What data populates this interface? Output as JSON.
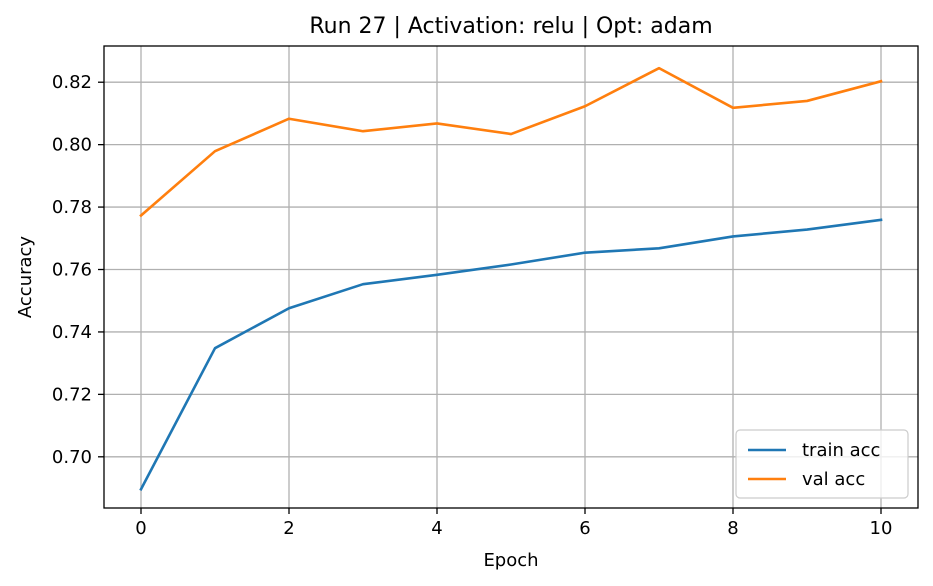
{
  "chart_data": {
    "type": "line",
    "title": "Run 27 | Activation: relu | Opt: adam",
    "xlabel": "Epoch",
    "ylabel": "Accuracy",
    "x": [
      0,
      1,
      2,
      3,
      4,
      5,
      6,
      7,
      8,
      9,
      10
    ],
    "xlim": [
      -0.5,
      10.5
    ],
    "ylim": [
      0.6836,
      0.8316
    ],
    "xticks": [
      0,
      2,
      4,
      6,
      8,
      10
    ],
    "xtick_labels": [
      "0",
      "2",
      "4",
      "6",
      "8",
      "10"
    ],
    "yticks": [
      0.7,
      0.72,
      0.74,
      0.76,
      0.78,
      0.8,
      0.82
    ],
    "ytick_labels": [
      "0.70",
      "0.72",
      "0.74",
      "0.76",
      "0.78",
      "0.80",
      "0.82"
    ],
    "grid": true,
    "legend_position": "bottom-right",
    "series": [
      {
        "name": "train acc",
        "color": "#1f77b4",
        "values": [
          0.6896,
          0.7348,
          0.7476,
          0.7553,
          0.7583,
          0.7616,
          0.7654,
          0.7668,
          0.7706,
          0.7728,
          0.7759
        ]
      },
      {
        "name": "val acc",
        "color": "#ff7f0e",
        "values": [
          0.7773,
          0.7979,
          0.8083,
          0.8043,
          0.8068,
          0.8034,
          0.8123,
          0.8245,
          0.8118,
          0.814,
          0.8203
        ]
      }
    ]
  }
}
